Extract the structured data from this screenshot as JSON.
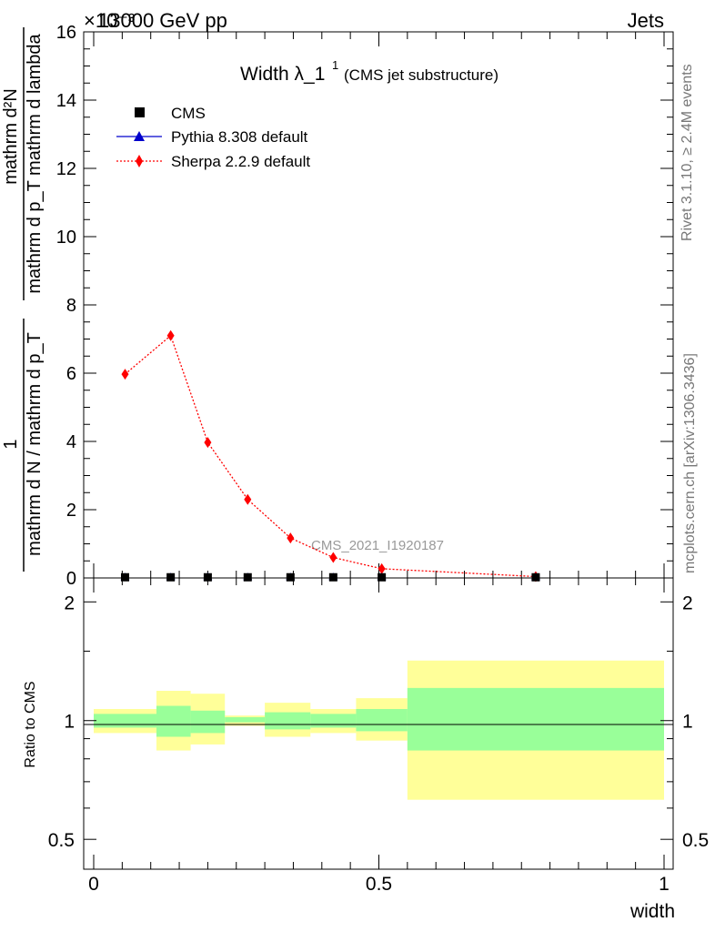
{
  "header": {
    "left": "13000 GeV pp",
    "right": "Jets",
    "multiplier": "×10⁻³"
  },
  "side_text": {
    "rivet": "Rivet 3.1.10, ≥ 2.4M events",
    "mcplots": "mcplots.cern.ch [arXiv:1306.3436]"
  },
  "watermark": "CMS_2021_I1920187",
  "colors": {
    "sherpa": "#ff0000",
    "pythia": "#0000cc",
    "cms": "#000000",
    "band_outer": "#ffff99",
    "band_inner": "#99ff99"
  },
  "chart_data": [
    {
      "type": "line",
      "panel": "main",
      "title": "Width λ_1",
      "title_sup": "1",
      "subtitle": "(CMS jet substructure)",
      "ylabel_numerator": "mathrm d²N",
      "ylabel_denominator": "mathrm d p_T mathrm d lambda",
      "ylabel_prefix_num": "1",
      "ylabel_prefix_den": "mathrm d N / mathrm d p_T",
      "xlim": [
        0,
        1
      ],
      "ylim": [
        0,
        16
      ],
      "y_ticks": [
        "0",
        "2",
        "4",
        "6",
        "8",
        "10",
        "12",
        "14",
        "16"
      ],
      "legend": [
        {
          "label": "CMS",
          "marker": "square"
        },
        {
          "label": "Pythia 8.308 default",
          "marker": "triangle"
        },
        {
          "label": "Sherpa 2.2.9 default",
          "marker": "diamond"
        }
      ],
      "series": [
        {
          "name": "CMS",
          "x": [
            0.055,
            0.135,
            0.2,
            0.27,
            0.345,
            0.42,
            0.505,
            0.775
          ],
          "y": [
            0.02,
            0.02,
            0.02,
            0.02,
            0.02,
            0.02,
            0.02,
            0.02
          ]
        },
        {
          "name": "Pythia 8.308 default",
          "x": [
            0.055,
            0.135,
            0.2,
            0.27,
            0.345,
            0.42,
            0.505,
            0.775
          ],
          "y": [
            0.02,
            0.02,
            0.02,
            0.02,
            0.02,
            0.02,
            0.02,
            0.02
          ]
        },
        {
          "name": "Sherpa 2.2.9 default",
          "x": [
            0.055,
            0.135,
            0.2,
            0.27,
            0.345,
            0.42,
            0.505,
            0.775
          ],
          "y": [
            5.97,
            7.1,
            3.97,
            2.3,
            1.17,
            0.6,
            0.27,
            0.04
          ]
        }
      ]
    },
    {
      "type": "area",
      "panel": "ratio",
      "ylabel": "Ratio to CMS",
      "xlabel": "width",
      "xlim": [
        0,
        1
      ],
      "ylim": [
        0.42,
        2.3
      ],
      "y_scale": "log",
      "y_ticks": [
        "0.5",
        "1",
        "2"
      ],
      "x_ticks": [
        "0",
        "0.5",
        "1"
      ],
      "bins": [
        {
          "x0": 0.0,
          "x1": 0.11,
          "outer": [
            0.93,
            1.07
          ],
          "inner": [
            0.96,
            1.04
          ]
        },
        {
          "x0": 0.11,
          "x1": 0.17,
          "outer": [
            0.84,
            1.19
          ],
          "inner": [
            0.91,
            1.09
          ]
        },
        {
          "x0": 0.17,
          "x1": 0.23,
          "outer": [
            0.87,
            1.17
          ],
          "inner": [
            0.93,
            1.06
          ]
        },
        {
          "x0": 0.23,
          "x1": 0.3,
          "outer": [
            0.97,
            1.03
          ],
          "inner": [
            0.99,
            1.02
          ]
        },
        {
          "x0": 0.3,
          "x1": 0.38,
          "outer": [
            0.91,
            1.11
          ],
          "inner": [
            0.95,
            1.05
          ]
        },
        {
          "x0": 0.38,
          "x1": 0.46,
          "outer": [
            0.93,
            1.07
          ],
          "inner": [
            0.96,
            1.04
          ]
        },
        {
          "x0": 0.46,
          "x1": 0.55,
          "outer": [
            0.89,
            1.14
          ],
          "inner": [
            0.94,
            1.07
          ]
        },
        {
          "x0": 0.55,
          "x1": 1.0,
          "outer": [
            0.63,
            1.42
          ],
          "inner": [
            0.84,
            1.21
          ]
        }
      ]
    }
  ]
}
